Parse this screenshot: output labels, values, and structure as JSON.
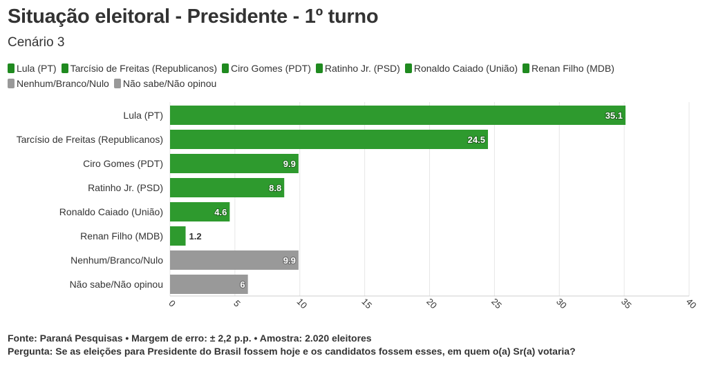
{
  "title": "Situação eleitoral - Presidente - 1º turno",
  "subtitle": "Cenário 3",
  "colors": {
    "green": "#2e9a2e",
    "legend_green": "#1f8a1f",
    "gray": "#999999",
    "grid": "#e6e6e6",
    "text": "#333333"
  },
  "legend": [
    {
      "label": "Lula (PT)",
      "color": "green"
    },
    {
      "label": "Tarcísio de Freitas (Republicanos)",
      "color": "green"
    },
    {
      "label": "Ciro Gomes (PDT)",
      "color": "green"
    },
    {
      "label": "Ratinho Jr. (PSD)",
      "color": "green"
    },
    {
      "label": "Ronaldo Caiado (União)",
      "color": "green"
    },
    {
      "label": "Renan Filho (MDB)",
      "color": "green"
    },
    {
      "label": "Nenhum/Branco/Nulo",
      "color": "gray"
    },
    {
      "label": "Não sabe/Não opinou",
      "color": "gray"
    }
  ],
  "chart_data": {
    "type": "bar",
    "orientation": "horizontal",
    "categories": [
      "Lula (PT)",
      "Tarcísio de Freitas (Republicanos)",
      "Ciro Gomes (PDT)",
      "Ratinho Jr. (PSD)",
      "Ronaldo Caiado (União)",
      "Renan Filho (MDB)",
      "Nenhum/Branco/Nulo",
      "Não sabe/Não opinou"
    ],
    "values": [
      35.1,
      24.5,
      9.9,
      8.8,
      4.6,
      1.2,
      9.9,
      6
    ],
    "value_labels": [
      "35.1",
      "24.5",
      "9.9",
      "8.8",
      "4.6",
      "1.2",
      "9.9",
      "6"
    ],
    "bar_colors": [
      "green",
      "green",
      "green",
      "green",
      "green",
      "green",
      "gray",
      "gray"
    ],
    "xlim": [
      0,
      40
    ],
    "xticks": [
      0,
      5,
      10,
      15,
      20,
      25,
      30,
      35,
      40
    ],
    "grid": true,
    "legend_position": "top"
  },
  "footer": {
    "source": "Fonte: Paraná Pesquisas • Margem de erro: ± 2,2 p.p. • Amostra: 2.020 eleitores",
    "question_label": "Pergunta:",
    "question_text": " Se as eleições para Presidente do Brasil fossem hoje e os candidatos fossem esses, em quem o(a) Sr(a) votaria?"
  }
}
